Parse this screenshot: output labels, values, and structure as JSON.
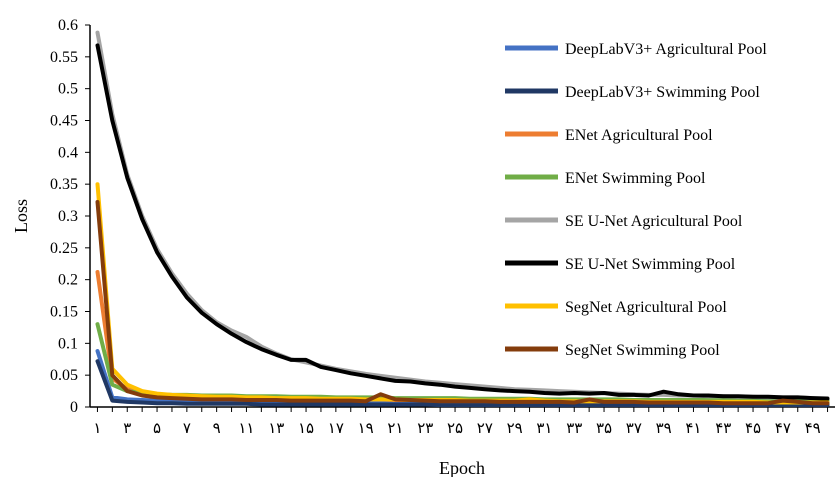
{
  "chart_data": {
    "type": "line",
    "title": "",
    "xlabel": "Epoch",
    "ylabel": "Loss",
    "ylim": [
      0,
      0.6
    ],
    "y_ticks": [
      "0",
      "0.05",
      "0.1",
      "0.15",
      "0.2",
      "0.25",
      "0.3",
      "0.35",
      "0.4",
      "0.45",
      "0.5",
      "0.55",
      "0.6"
    ],
    "x_tick_labels": [
      "۱",
      "۳",
      "۵",
      "۷",
      "۹",
      "۱۱",
      "۱۳",
      "۱۵",
      "۱۷",
      "۱۹",
      "۲۱",
      "۲۳",
      "۲۵",
      "۲۷",
      "۲۹",
      "۳۱",
      "۳۳",
      "۳۵",
      "۳۷",
      "۳۹",
      "۴۱",
      "۴۳",
      "۴۵",
      "۴۷",
      "۴۹"
    ],
    "x": [
      1,
      2,
      3,
      4,
      5,
      6,
      7,
      8,
      9,
      10,
      11,
      12,
      13,
      14,
      15,
      16,
      17,
      18,
      19,
      20,
      21,
      22,
      23,
      24,
      25,
      26,
      27,
      28,
      29,
      30,
      31,
      32,
      33,
      34,
      35,
      36,
      37,
      38,
      39,
      40,
      41,
      42,
      43,
      44,
      45,
      46,
      47,
      48,
      49,
      50
    ],
    "grid": false,
    "legend_position": "right",
    "series": [
      {
        "name": "DeepLabV3+ Agricultural Pool",
        "color": "#4472C4",
        "values": [
          0.088,
          0.015,
          0.012,
          0.011,
          0.01,
          0.01,
          0.009,
          0.009,
          0.009,
          0.008,
          0.008,
          0.008,
          0.008,
          0.007,
          0.007,
          0.007,
          0.007,
          0.007,
          0.006,
          0.006,
          0.006,
          0.006,
          0.006,
          0.006,
          0.006,
          0.006,
          0.005,
          0.005,
          0.005,
          0.005,
          0.005,
          0.005,
          0.005,
          0.005,
          0.005,
          0.005,
          0.005,
          0.005,
          0.004,
          0.004,
          0.004,
          0.004,
          0.004,
          0.004,
          0.004,
          0.004,
          0.004,
          0.004,
          0.004,
          0.004
        ]
      },
      {
        "name": "DeepLabV3+ Swimming Pool",
        "color": "#203864",
        "values": [
          0.072,
          0.01,
          0.008,
          0.007,
          0.006,
          0.006,
          0.005,
          0.005,
          0.005,
          0.005,
          0.005,
          0.004,
          0.004,
          0.004,
          0.004,
          0.004,
          0.004,
          0.004,
          0.004,
          0.004,
          0.004,
          0.004,
          0.004,
          0.003,
          0.003,
          0.003,
          0.003,
          0.003,
          0.003,
          0.003,
          0.003,
          0.003,
          0.003,
          0.003,
          0.003,
          0.003,
          0.003,
          0.003,
          0.003,
          0.003,
          0.003,
          0.003,
          0.003,
          0.003,
          0.003,
          0.003,
          0.003,
          0.003,
          0.003,
          0.003
        ]
      },
      {
        "name": "ENet Agricultural Pool",
        "color": "#ED7D31",
        "values": [
          0.212,
          0.045,
          0.028,
          0.022,
          0.02,
          0.018,
          0.017,
          0.016,
          0.016,
          0.015,
          0.015,
          0.014,
          0.014,
          0.013,
          0.013,
          0.013,
          0.012,
          0.012,
          0.012,
          0.012,
          0.011,
          0.011,
          0.011,
          0.011,
          0.011,
          0.01,
          0.01,
          0.01,
          0.01,
          0.01,
          0.01,
          0.01,
          0.009,
          0.009,
          0.009,
          0.009,
          0.009,
          0.009,
          0.009,
          0.009,
          0.009,
          0.009,
          0.008,
          0.008,
          0.008,
          0.008,
          0.008,
          0.008,
          0.008,
          0.008
        ]
      },
      {
        "name": "ENet Swimming Pool",
        "color": "#70AD47",
        "values": [
          0.13,
          0.035,
          0.025,
          0.022,
          0.02,
          0.019,
          0.019,
          0.018,
          0.018,
          0.018,
          0.017,
          0.017,
          0.017,
          0.016,
          0.016,
          0.016,
          0.015,
          0.015,
          0.015,
          0.015,
          0.014,
          0.014,
          0.014,
          0.014,
          0.014,
          0.013,
          0.013,
          0.013,
          0.013,
          0.013,
          0.012,
          0.012,
          0.012,
          0.012,
          0.012,
          0.012,
          0.011,
          0.011,
          0.011,
          0.011,
          0.011,
          0.011,
          0.011,
          0.01,
          0.01,
          0.01,
          0.01,
          0.01,
          0.01,
          0.01
        ]
      },
      {
        "name": "SE U-Net Agricultural Pool",
        "color": "#A5A5A5",
        "values": [
          0.588,
          0.46,
          0.365,
          0.3,
          0.248,
          0.21,
          0.178,
          0.152,
          0.133,
          0.12,
          0.11,
          0.095,
          0.084,
          0.075,
          0.07,
          0.065,
          0.06,
          0.056,
          0.052,
          0.049,
          0.046,
          0.043,
          0.04,
          0.038,
          0.036,
          0.034,
          0.032,
          0.03,
          0.028,
          0.027,
          0.026,
          0.025,
          0.024,
          0.023,
          0.022,
          0.021,
          0.02,
          0.019,
          0.019,
          0.018,
          0.018,
          0.017,
          0.017,
          0.016,
          0.016,
          0.015,
          0.015,
          0.015,
          0.014,
          0.014
        ]
      },
      {
        "name": "SE U-Net Swimming Pool",
        "color": "#000000",
        "values": [
          0.568,
          0.45,
          0.36,
          0.295,
          0.243,
          0.205,
          0.172,
          0.148,
          0.13,
          0.115,
          0.102,
          0.091,
          0.082,
          0.074,
          0.074,
          0.063,
          0.058,
          0.053,
          0.049,
          0.045,
          0.041,
          0.04,
          0.037,
          0.035,
          0.032,
          0.03,
          0.028,
          0.026,
          0.025,
          0.024,
          0.022,
          0.021,
          0.022,
          0.021,
          0.022,
          0.019,
          0.019,
          0.018,
          0.024,
          0.02,
          0.018,
          0.018,
          0.017,
          0.017,
          0.016,
          0.016,
          0.015,
          0.015,
          0.014,
          0.013
        ]
      },
      {
        "name": "SegNet Agricultural Pool",
        "color": "#FFC000",
        "values": [
          0.35,
          0.06,
          0.035,
          0.025,
          0.021,
          0.019,
          0.018,
          0.017,
          0.016,
          0.016,
          0.015,
          0.015,
          0.014,
          0.014,
          0.014,
          0.013,
          0.013,
          0.013,
          0.012,
          0.012,
          0.012,
          0.011,
          0.011,
          0.011,
          0.011,
          0.01,
          0.01,
          0.01,
          0.01,
          0.012,
          0.01,
          0.009,
          0.009,
          0.009,
          0.009,
          0.009,
          0.009,
          0.008,
          0.008,
          0.008,
          0.008,
          0.008,
          0.008,
          0.008,
          0.008,
          0.007,
          0.007,
          0.007,
          0.007,
          0.007
        ]
      },
      {
        "name": "SegNet Swimming Pool",
        "color": "#843C0C",
        "values": [
          0.322,
          0.05,
          0.025,
          0.018,
          0.015,
          0.014,
          0.013,
          0.012,
          0.012,
          0.012,
          0.011,
          0.011,
          0.011,
          0.01,
          0.01,
          0.01,
          0.01,
          0.01,
          0.009,
          0.02,
          0.012,
          0.011,
          0.01,
          0.009,
          0.009,
          0.009,
          0.009,
          0.008,
          0.008,
          0.008,
          0.008,
          0.008,
          0.007,
          0.012,
          0.008,
          0.008,
          0.008,
          0.007,
          0.007,
          0.007,
          0.007,
          0.007,
          0.006,
          0.006,
          0.006,
          0.006,
          0.01,
          0.008,
          0.006,
          0.006
        ]
      }
    ]
  }
}
